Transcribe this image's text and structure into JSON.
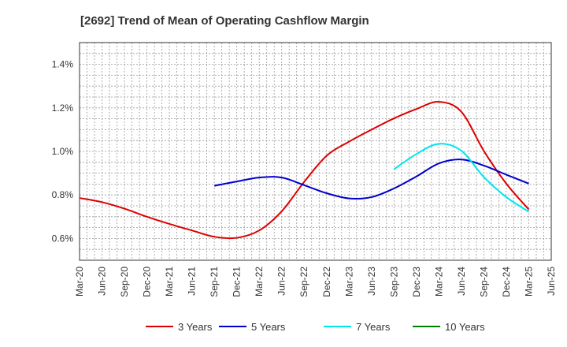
{
  "chart_data": {
    "type": "line",
    "title": "[2692]  Trend of Mean of Operating Cashflow Margin",
    "xlabel": "",
    "ylabel": "",
    "x_tick_labels": [
      "Mar-20",
      "Jun-20",
      "Sep-20",
      "Dec-20",
      "Mar-21",
      "Jun-21",
      "Sep-21",
      "Dec-21",
      "Mar-22",
      "Jun-22",
      "Sep-22",
      "Dec-22",
      "Mar-23",
      "Jun-23",
      "Sep-23",
      "Dec-23",
      "Mar-24",
      "Jun-24",
      "Sep-24",
      "Dec-24",
      "Mar-25",
      "Jun-25"
    ],
    "y_ticks": [
      0.6,
      0.8,
      1.0,
      1.2,
      1.4
    ],
    "y_tick_labels": [
      "0.6%",
      "0.8%",
      "1.0%",
      "1.2%",
      "1.4%"
    ],
    "ylim": [
      0.5,
      1.5
    ],
    "y_unit": "%",
    "grid": true,
    "legend_position": "bottom",
    "series": [
      {
        "name": "3 Years",
        "color": "#dd0000",
        "points": [
          [
            "Mar-20",
            0.786
          ],
          [
            "Jun-20",
            0.767
          ],
          [
            "Sep-20",
            0.737
          ],
          [
            "Dec-20",
            0.7
          ],
          [
            "Mar-21",
            0.667
          ],
          [
            "Jun-21",
            0.637
          ],
          [
            "Sep-21",
            0.608
          ],
          [
            "Dec-21",
            0.603
          ],
          [
            "Mar-22",
            0.637
          ],
          [
            "Jun-22",
            0.725
          ],
          [
            "Sep-22",
            0.86
          ],
          [
            "Dec-22",
            0.98
          ],
          [
            "Mar-23",
            1.045
          ],
          [
            "Jun-23",
            1.1
          ],
          [
            "Sep-23",
            1.152
          ],
          [
            "Dec-23",
            1.195
          ],
          [
            "Mar-24",
            1.228
          ],
          [
            "Jun-24",
            1.182
          ],
          [
            "Sep-24",
            1.002
          ],
          [
            "Dec-24",
            0.852
          ],
          [
            "Mar-25",
            0.733
          ]
        ]
      },
      {
        "name": "5 Years",
        "color": "#0000cc",
        "points": [
          [
            "Sep-21",
            0.842
          ],
          [
            "Dec-21",
            0.862
          ],
          [
            "Mar-22",
            0.88
          ],
          [
            "Jun-22",
            0.88
          ],
          [
            "Sep-22",
            0.845
          ],
          [
            "Dec-22",
            0.808
          ],
          [
            "Mar-23",
            0.784
          ],
          [
            "Jun-23",
            0.79
          ],
          [
            "Sep-23",
            0.83
          ],
          [
            "Dec-23",
            0.885
          ],
          [
            "Mar-24",
            0.945
          ],
          [
            "Jun-24",
            0.963
          ],
          [
            "Sep-24",
            0.935
          ],
          [
            "Dec-24",
            0.893
          ],
          [
            "Mar-25",
            0.852
          ]
        ]
      },
      {
        "name": "7 Years",
        "color": "#00e5ee",
        "points": [
          [
            "Sep-23",
            0.918
          ],
          [
            "Dec-23",
            0.988
          ],
          [
            "Mar-24",
            1.035
          ],
          [
            "Jun-24",
            1.003
          ],
          [
            "Sep-24",
            0.882
          ],
          [
            "Dec-24",
            0.79
          ],
          [
            "Mar-25",
            0.723
          ]
        ]
      },
      {
        "name": "10 Years",
        "color": "#008000",
        "points": []
      }
    ]
  }
}
